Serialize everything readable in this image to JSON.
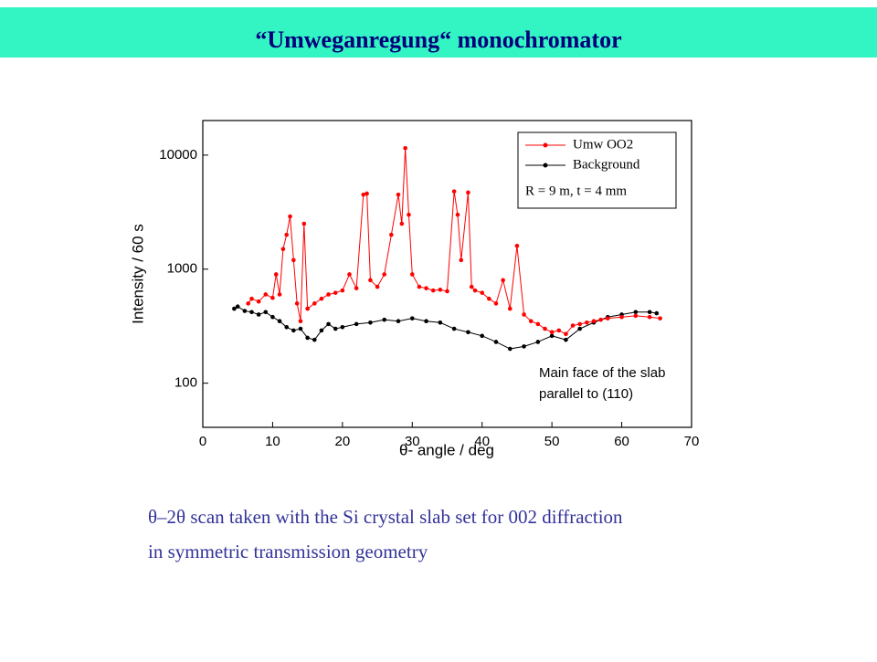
{
  "title": "“Umweganregung“ monochromator",
  "caption": [
    "θ–2θ scan taken with the Si crystal slab set for 002 diffraction",
    "in symmetric transmission geometry"
  ],
  "chart_data": {
    "type": "scatter-line",
    "x_label": "θ- angle / deg",
    "y_label": "Intensity / 60 s",
    "xlim": [
      0,
      70
    ],
    "xticks": [
      0,
      10,
      20,
      30,
      40,
      50,
      60,
      70
    ],
    "ylim": [
      41,
      20100
    ],
    "yticks": [
      100,
      1000,
      10000
    ],
    "log_y": true,
    "grid": false,
    "legend_position": "upper right",
    "legend_note": "R = 9 m, t = 4 mm",
    "annotations": [
      "Main face of the slab",
      "parallel to (110)"
    ],
    "series": [
      {
        "name": "Umw OO2",
        "color": "#ff0000",
        "x": [
          6.5,
          7,
          8,
          9,
          10,
          10.5,
          11,
          11.5,
          12,
          12.5,
          13,
          13.5,
          14,
          14.5,
          15,
          16,
          17,
          18,
          19,
          20,
          21,
          22,
          23,
          23.5,
          24,
          25,
          26,
          27,
          28,
          28.5,
          29,
          29.5,
          30,
          31,
          32,
          33,
          34,
          35,
          36,
          36.5,
          37,
          38,
          38.5,
          39,
          40,
          41,
          42,
          43,
          44,
          45,
          46,
          47,
          48,
          49,
          50,
          51,
          52,
          53,
          54,
          55,
          56,
          57,
          58,
          60,
          62,
          64,
          65.5
        ],
        "values": [
          500,
          550,
          520,
          600,
          560,
          900,
          600,
          1500,
          2000,
          2900,
          1200,
          500,
          350,
          2500,
          450,
          500,
          550,
          600,
          620,
          650,
          900,
          680,
          4500,
          4600,
          800,
          700,
          900,
          2000,
          4500,
          2500,
          11500,
          3000,
          900,
          700,
          680,
          650,
          660,
          640,
          4800,
          3000,
          1200,
          4700,
          700,
          650,
          620,
          550,
          500,
          800,
          450,
          1600,
          400,
          350,
          330,
          300,
          280,
          290,
          270,
          320,
          330,
          340,
          350,
          360,
          370,
          380,
          390,
          380,
          370
        ]
      },
      {
        "name": "Background",
        "color": "#000000",
        "x": [
          4.5,
          5,
          6,
          7,
          8,
          9,
          10,
          11,
          12,
          13,
          14,
          15,
          16,
          17,
          18,
          19,
          20,
          22,
          24,
          26,
          28,
          30,
          32,
          34,
          36,
          38,
          40,
          42,
          44,
          46,
          48,
          50,
          52,
          54,
          56,
          58,
          60,
          62,
          64,
          65
        ],
        "values": [
          450,
          470,
          430,
          420,
          400,
          420,
          380,
          350,
          310,
          290,
          300,
          250,
          240,
          290,
          330,
          300,
          310,
          330,
          340,
          360,
          350,
          370,
          350,
          340,
          300,
          280,
          260,
          230,
          200,
          210,
          230,
          260,
          240,
          300,
          340,
          380,
          400,
          420,
          420,
          410
        ]
      }
    ]
  }
}
